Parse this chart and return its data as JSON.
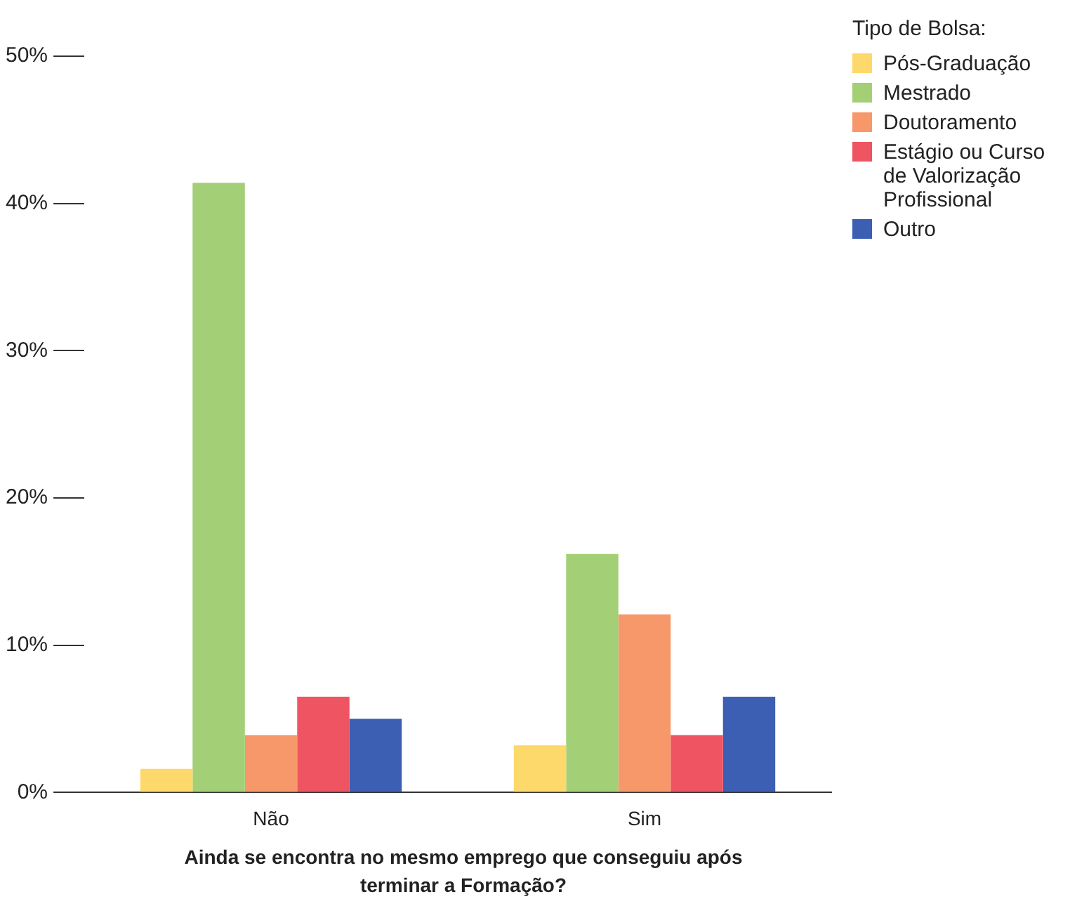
{
  "chart_data": {
    "type": "bar",
    "xlabel": "Ainda se encontra no mesmo emprego que conseguiu após terminar a Formação?",
    "legend_title": "Tipo de Bolsa:",
    "categories": [
      "Não",
      "Sim"
    ],
    "series": [
      {
        "name": "Pós-Graduação",
        "color": "#fdd86a",
        "values": [
          1.6,
          3.2
        ]
      },
      {
        "name": "Mestrado",
        "color": "#a3d076",
        "values": [
          41.4,
          16.2
        ]
      },
      {
        "name": "Doutoramento",
        "color": "#f7986b",
        "values": [
          3.9,
          12.1
        ]
      },
      {
        "name": "Estágio ou Curso de Valorização Profissional",
        "color": "#ef5462",
        "values": [
          6.5,
          3.9
        ]
      },
      {
        "name": "Outro",
        "color": "#3d5fb3",
        "values": [
          5.0,
          6.5
        ]
      }
    ],
    "ylim": [
      0,
      50
    ],
    "yticks": [
      {
        "value": 0,
        "label": "0%"
      },
      {
        "value": 10,
        "label": "10%"
      },
      {
        "value": 20,
        "label": "20%"
      },
      {
        "value": 30,
        "label": "30%"
      },
      {
        "value": 40,
        "label": "40%"
      },
      {
        "value": 50,
        "label": "50%"
      }
    ],
    "grid": false,
    "legend": "top right"
  }
}
